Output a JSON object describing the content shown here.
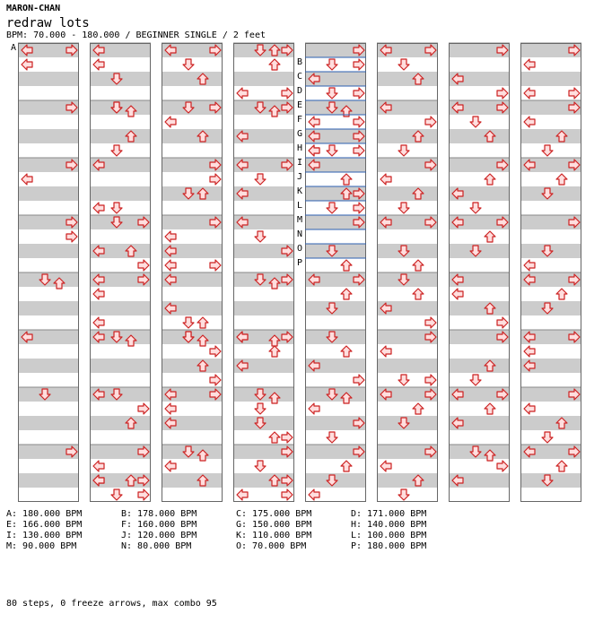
{
  "header": {
    "artist": "MARON-CHAN",
    "title": "redraw lots",
    "info": "BPM: 70.000 - 180.000 / BEGINNER SINGLE / 2 feet"
  },
  "colors": {
    "stripe": "#cccccc",
    "arrow_fill": "#ffdede",
    "arrow_stroke": "#cc2222",
    "bpm_line": "#2d5fb0"
  },
  "arrow_icon": "dance-arrow-icon",
  "measures": [
    [
      [
        "L",
        0
      ],
      [
        "R",
        0
      ],
      [
        "L",
        2
      ]
    ],
    [
      [
        "R",
        0
      ]
    ],
    [
      [
        "R",
        0
      ],
      [
        "L",
        2
      ]
    ],
    [
      [
        "R",
        0
      ],
      [
        "R",
        2
      ]
    ],
    [
      [
        "U",
        0.5
      ],
      [
        "D",
        0
      ]
    ],
    [
      [
        "L",
        0
      ]
    ],
    [
      [
        "D",
        0
      ]
    ],
    [
      [
        "R",
        0
      ]
    ],
    [
      [
        "L",
        0
      ],
      [
        "L",
        2
      ],
      [
        "D",
        4
      ]
    ],
    [
      [
        "U",
        0.5
      ],
      [
        "D",
        0
      ],
      [
        "U",
        4
      ],
      [
        "D",
        0
      ],
      [
        "D",
        6
      ]
    ],
    [
      [
        "L",
        0
      ],
      [
        "L",
        6
      ],
      [
        "D",
        6
      ]
    ],
    [
      [
        "R",
        0
      ],
      [
        "U",
        4
      ],
      [
        "D",
        0
      ],
      [
        "L",
        4
      ],
      [
        "R",
        6
      ]
    ],
    [
      [
        "L",
        0
      ],
      [
        "R",
        0
      ],
      [
        "L",
        2
      ],
      [
        "L",
        6
      ]
    ],
    [
      [
        "U",
        0.5
      ],
      [
        "D",
        0
      ],
      [
        "L",
        0
      ]
    ],
    [
      [
        "L",
        0
      ],
      [
        "R",
        2
      ],
      [
        "U",
        4
      ],
      [
        "D",
        0
      ]
    ],
    [
      [
        "R",
        0
      ],
      [
        "L",
        2
      ],
      [
        "R",
        6
      ],
      [
        "D",
        6
      ],
      [
        "U",
        4
      ],
      [
        "L",
        4
      ],
      [
        "R",
        4
      ],
      [
        "L",
        4
      ]
    ],
    [
      [
        "L",
        0
      ],
      [
        "R",
        0
      ],
      [
        "D",
        2
      ],
      [
        "U",
        4
      ]
    ],
    [
      [
        "R",
        0
      ],
      [
        "L",
        2
      ],
      [
        "U",
        4
      ],
      [
        "D",
        0
      ]
    ],
    [
      [
        "R",
        0
      ],
      [
        "R",
        2
      ],
      [
        "U",
        4
      ],
      [
        "D",
        4
      ]
    ],
    [
      [
        "R",
        0
      ],
      [
        "L",
        6
      ],
      [
        "R",
        6
      ],
      [
        "L",
        2
      ],
      [
        "L",
        4
      ]
    ],
    [
      [
        "L",
        0
      ],
      [
        "L",
        4
      ],
      [
        "U",
        6
      ],
      [
        "D",
        6
      ]
    ],
    [
      [
        "U",
        0.5
      ],
      [
        "D",
        0
      ],
      [
        "R",
        2
      ],
      [
        "U",
        4
      ],
      [
        "D",
        0
      ],
      [
        "R",
        6
      ]
    ],
    [
      [
        "L",
        0
      ],
      [
        "R",
        0
      ],
      [
        "L",
        2
      ],
      [
        "L",
        4
      ]
    ],
    [
      [
        "U",
        0.5
      ],
      [
        "D",
        0
      ],
      [
        "L",
        2
      ],
      [
        "U",
        4
      ]
    ],
    [
      [
        "R",
        0
      ],
      [
        "L",
        6
      ],
      [
        "R",
        6
      ],
      [
        "U",
        0
      ],
      [
        "D",
        0
      ],
      [
        "U",
        2
      ]
    ],
    [
      [
        "R",
        0
      ],
      [
        "U",
        0.5
      ],
      [
        "D",
        0
      ],
      [
        "L",
        4
      ]
    ],
    [
      [
        "L",
        0
      ],
      [
        "R",
        0
      ],
      [
        "D",
        2
      ],
      [
        "L",
        4
      ]
    ],
    [
      [
        "L",
        0
      ],
      [
        "D",
        2
      ],
      [
        "R",
        4
      ]
    ],
    [
      [
        "R",
        0
      ],
      [
        "U",
        0.5
      ],
      [
        "D",
        0
      ]
    ],
    [
      [
        "L",
        0
      ],
      [
        "R",
        0
      ],
      [
        "U",
        0.5
      ],
      [
        "L",
        0
      ],
      [
        "U",
        2
      ],
      [
        "L",
        4
      ]
    ],
    [
      [
        "U",
        0.5
      ],
      [
        "D",
        0
      ],
      [
        "D",
        4
      ],
      [
        "U",
        6
      ],
      [
        "R",
        6
      ],
      [
        "D",
        2
      ]
    ],
    [
      [
        "R",
        0
      ],
      [
        "D",
        2
      ],
      [
        "U",
        4
      ],
      [
        "L",
        6
      ],
      [
        "R",
        6
      ],
      [
        "R",
        4
      ]
    ],
    [
      [
        "R",
        0
      ],
      [
        "D",
        2
      ],
      [
        "L",
        4
      ],
      [
        "R",
        6
      ],
      [
        "D",
        6
      ],
      [
        "R",
        2
      ]
    ],
    [
      [
        "U",
        0.5
      ],
      [
        "D",
        0
      ],
      [
        "L",
        2
      ],
      [
        "R",
        4
      ],
      [
        "R",
        6
      ],
      [
        "L",
        6
      ],
      [
        "L",
        4
      ],
      [
        "R",
        2
      ],
      [
        "L",
        6
      ],
      [
        "D",
        6
      ]
    ],
    [
      [
        "L",
        0
      ],
      [
        "U",
        2
      ],
      [
        "R",
        4
      ],
      [
        "D",
        6
      ],
      [
        "U",
        4
      ],
      [
        "R",
        6
      ]
    ],
    [
      [
        "R",
        0
      ],
      [
        "D",
        4
      ],
      [
        "U",
        6
      ]
    ],
    [
      [
        "L",
        0
      ],
      [
        "R",
        0
      ],
      [
        "U",
        2
      ],
      [
        "D",
        4
      ]
    ],
    [
      [
        "D",
        0
      ],
      [
        "U",
        2
      ],
      [
        "L",
        4
      ],
      [
        "R",
        6
      ]
    ],
    [
      [
        "U",
        0.5
      ],
      [
        "D",
        0
      ],
      [
        "L",
        2
      ],
      [
        "R",
        4
      ],
      [
        "D",
        6
      ]
    ],
    [
      [
        "R",
        0
      ],
      [
        "U",
        2
      ],
      [
        "D",
        4
      ],
      [
        "L",
        6
      ]
    ],
    [
      [
        "L",
        0
      ],
      [
        "R",
        0
      ],
      [
        "D",
        2
      ],
      [
        "U",
        4
      ]
    ],
    [
      [
        "L",
        0
      ],
      [
        "R",
        2
      ],
      [
        "U",
        4
      ],
      [
        "D",
        6
      ]
    ],
    [
      [
        "R",
        0
      ],
      [
        "L",
        2
      ],
      [
        "U",
        4
      ],
      [
        "D",
        6
      ]
    ],
    [
      [
        "L",
        0
      ],
      [
        "R",
        0
      ],
      [
        "D",
        4
      ],
      [
        "U",
        6
      ]
    ],
    [
      [
        "D",
        0
      ],
      [
        "U",
        2
      ],
      [
        "L",
        4
      ],
      [
        "R",
        6
      ]
    ],
    [
      [
        "R",
        0
      ],
      [
        "L",
        2
      ],
      [
        "R",
        6
      ],
      [
        "D",
        6
      ]
    ],
    [
      [
        "L",
        0
      ],
      [
        "R",
        0
      ],
      [
        "U",
        2
      ],
      [
        "D",
        4
      ]
    ],
    [
      [
        "R",
        0
      ],
      [
        "L",
        2
      ],
      [
        "U",
        4
      ],
      [
        "D",
        6
      ]
    ],
    [
      [
        "R",
        0
      ],
      [
        "L",
        4
      ],
      [
        "R",
        6
      ]
    ],
    [
      [
        "L",
        0
      ],
      [
        "R",
        0
      ],
      [
        "D",
        2
      ],
      [
        "U",
        4
      ]
    ],
    [
      [
        "R",
        0
      ],
      [
        "U",
        2
      ],
      [
        "L",
        4
      ],
      [
        "D",
        6
      ]
    ],
    [
      [
        "L",
        0
      ],
      [
        "R",
        0
      ],
      [
        "U",
        2
      ],
      [
        "D",
        4
      ]
    ],
    [
      [
        "L",
        0
      ],
      [
        "L",
        2
      ],
      [
        "U",
        4
      ],
      [
        "R",
        6
      ]
    ],
    [
      [
        "R",
        0
      ],
      [
        "U",
        4
      ],
      [
        "D",
        6
      ]
    ],
    [
      [
        "L",
        0
      ],
      [
        "R",
        0
      ],
      [
        "U",
        2
      ],
      [
        "L",
        4
      ]
    ],
    [
      [
        "U",
        0.5
      ],
      [
        "D",
        0
      ],
      [
        "R",
        2
      ],
      [
        "L",
        4
      ]
    ],
    [
      [
        "R",
        0
      ],
      [
        "L",
        6
      ],
      [
        "R",
        6
      ],
      [
        "L",
        2
      ]
    ],
    [
      [
        "R",
        0
      ],
      [
        "L",
        2
      ],
      [
        "U",
        4
      ],
      [
        "D",
        6
      ]
    ],
    [
      [
        "L",
        0
      ],
      [
        "R",
        0
      ],
      [
        "U",
        2
      ],
      [
        "D",
        4
      ]
    ],
    [
      [
        "R",
        0
      ],
      [
        "D",
        4
      ],
      [
        "L",
        6
      ]
    ],
    [
      [
        "L",
        0
      ],
      [
        "R",
        0
      ],
      [
        "U",
        2
      ],
      [
        "D",
        4
      ]
    ],
    [
      [
        "L",
        0
      ],
      [
        "R",
        0
      ],
      [
        "L",
        2
      ],
      [
        "L",
        4
      ]
    ],
    [
      [
        "R",
        0
      ],
      [
        "L",
        2
      ],
      [
        "U",
        4
      ],
      [
        "D",
        6
      ]
    ],
    [
      [
        "L",
        0
      ],
      [
        "R",
        0
      ],
      [
        "U",
        2
      ],
      [
        "D",
        4
      ]
    ]
  ],
  "bpm_markers": [
    "A",
    "B",
    "C",
    "D",
    "E",
    "F",
    "G",
    "H",
    "I",
    "J",
    "K",
    "L",
    "M",
    "N",
    "O",
    "P"
  ],
  "bpm_legend": [
    "A: 180.000 BPM",
    "B: 178.000 BPM",
    "C: 175.000 BPM",
    "D: 171.000 BPM",
    "E: 166.000 BPM",
    "F: 160.000 BPM",
    "G: 150.000 BPM",
    "H: 140.000 BPM",
    "I: 130.000 BPM",
    "J: 120.000 BPM",
    "K: 110.000 BPM",
    "L: 100.000 BPM",
    "M: 90.000 BPM",
    "N: 80.000 BPM",
    "O: 70.000 BPM",
    "P: 180.000 BPM"
  ],
  "footer": "80 steps, 0 freeze arrows, max combo 95"
}
